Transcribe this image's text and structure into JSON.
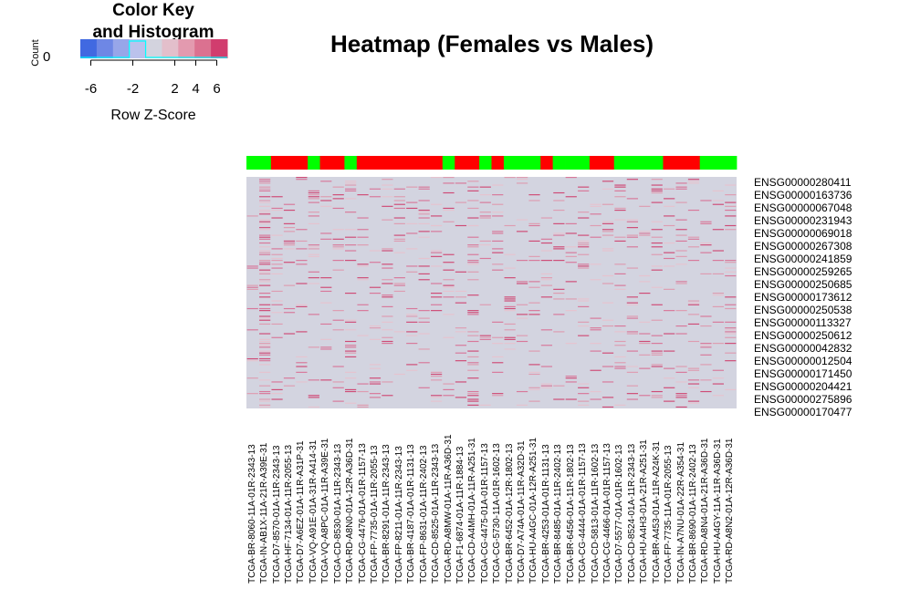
{
  "color_key": {
    "title": "Color Key\nand Histogram",
    "ylabel": "Count",
    "y_tick": "0",
    "xlabel": "Row Z-Score",
    "ticks": [
      "-6",
      "-2",
      "2",
      "4",
      "6"
    ],
    "tick_values": [
      -6,
      -2,
      2,
      4,
      6
    ],
    "range": [
      -7,
      7
    ],
    "colors": [
      "#4169E1",
      "#6E87E5",
      "#97A6E9",
      "#BBC2EC",
      "#D3D3DE",
      "#E3BFCB",
      "#E39AAF",
      "#DB7190",
      "#D13D6E"
    ]
  },
  "chart_data": {
    "type": "heatmap",
    "title": "Heatmap (Females vs Males)",
    "colors": {
      "female": "#00FF00",
      "male": "#FF0000",
      "background": "#D3D4E0",
      "high": "#D13D6E",
      "low": "#4169E1"
    },
    "rows": [
      "ENSG00000280411",
      "ENSG00000163736",
      "ENSG00000067048",
      "ENSG00000231943",
      "ENSG00000069018",
      "ENSG00000267308",
      "ENSG00000241859",
      "ENSG00000259265",
      "ENSG00000250685",
      "ENSG00000173612",
      "ENSG00000250538",
      "ENSG00000113327",
      "ENSG00000250612",
      "ENSG00000042832",
      "ENSG00000012504",
      "ENSG00000171450",
      "ENSG00000204421",
      "ENSG00000275896",
      "ENSG00000170477"
    ],
    "columns": [
      "TCGA-BR-8060-11A-01R-2343-13",
      "TCGA-IN-AB1X-11A-21R-A39E-31",
      "TCGA-D7-8570-01A-11R-2343-13",
      "TCGA-HF-7134-01A-11R-2055-13",
      "TCGA-D7-A6EZ-01A-11R-A31P-31",
      "TCGA-VQ-A91E-01A-31R-A414-31",
      "TCGA-VQ-A8PC-01A-11R-A39E-31",
      "TCGA-CD-8530-01A-11R-2343-13",
      "TCGA-RD-A8N0-01A-12R-A36D-31",
      "TCGA-CG-4476-01A-01R-1157-13",
      "TCGA-FP-7735-01A-11R-2055-13",
      "TCGA-BR-8291-01A-11R-2343-13",
      "TCGA-FP-8211-01A-11R-2343-13",
      "TCGA-BR-4187-01A-01R-1131-13",
      "TCGA-FP-8631-01A-11R-2402-13",
      "TCGA-CD-8525-01A-11R-2343-13",
      "TCGA-RD-A8MW-01A-11R-A36D-31",
      "TCGA-F1-6874-01A-11R-1884-13",
      "TCGA-CD-A4MH-01A-11R-A251-31",
      "TCGA-CG-4475-01A-01R-1157-13",
      "TCGA-CG-5730-11A-01R-1602-13",
      "TCGA-BR-6452-01A-12R-1802-13",
      "TCGA-D7-A74A-01A-11R-A32D-31",
      "TCGA-HU-A4GC-01A-12R-A251-31",
      "TCGA-BR-4253-01A-01R-1131-13",
      "TCGA-BR-8485-01A-11R-2402-13",
      "TCGA-BR-6456-01A-11R-1802-13",
      "TCGA-CG-4444-01A-01R-1157-13",
      "TCGA-CD-5813-01A-11R-1602-13",
      "TCGA-CG-4466-01A-01R-1157-13",
      "TCGA-D7-5577-01A-01R-1602-13",
      "TCGA-CD-8524-01A-11R-2343-13",
      "TCGA-HU-A4H3-01A-21R-A251-31",
      "TCGA-BR-A453-01A-11R-A24K-31",
      "TCGA-FP-7735-11A-01R-2055-13",
      "TCGA-IN-A7NU-01A-22R-A354-31",
      "TCGA-BR-8690-01A-11R-2402-13",
      "TCGA-RD-A8N4-01A-21R-A36D-31",
      "TCGA-HU-A4GY-11A-11R-A36D-31",
      "TCGA-RD-A8N2-01A-12R-A36D-31"
    ],
    "group": [
      "female",
      "female",
      "male",
      "male",
      "male",
      "female",
      "male",
      "male",
      "female",
      "male",
      "male",
      "male",
      "male",
      "male",
      "male",
      "male",
      "female",
      "male",
      "male",
      "female",
      "male",
      "female",
      "female",
      "female",
      "male",
      "female",
      "female",
      "female",
      "male",
      "male",
      "female",
      "female",
      "female",
      "female",
      "male",
      "male",
      "male",
      "female",
      "female",
      "female"
    ],
    "value_range": [
      -7,
      7
    ]
  }
}
